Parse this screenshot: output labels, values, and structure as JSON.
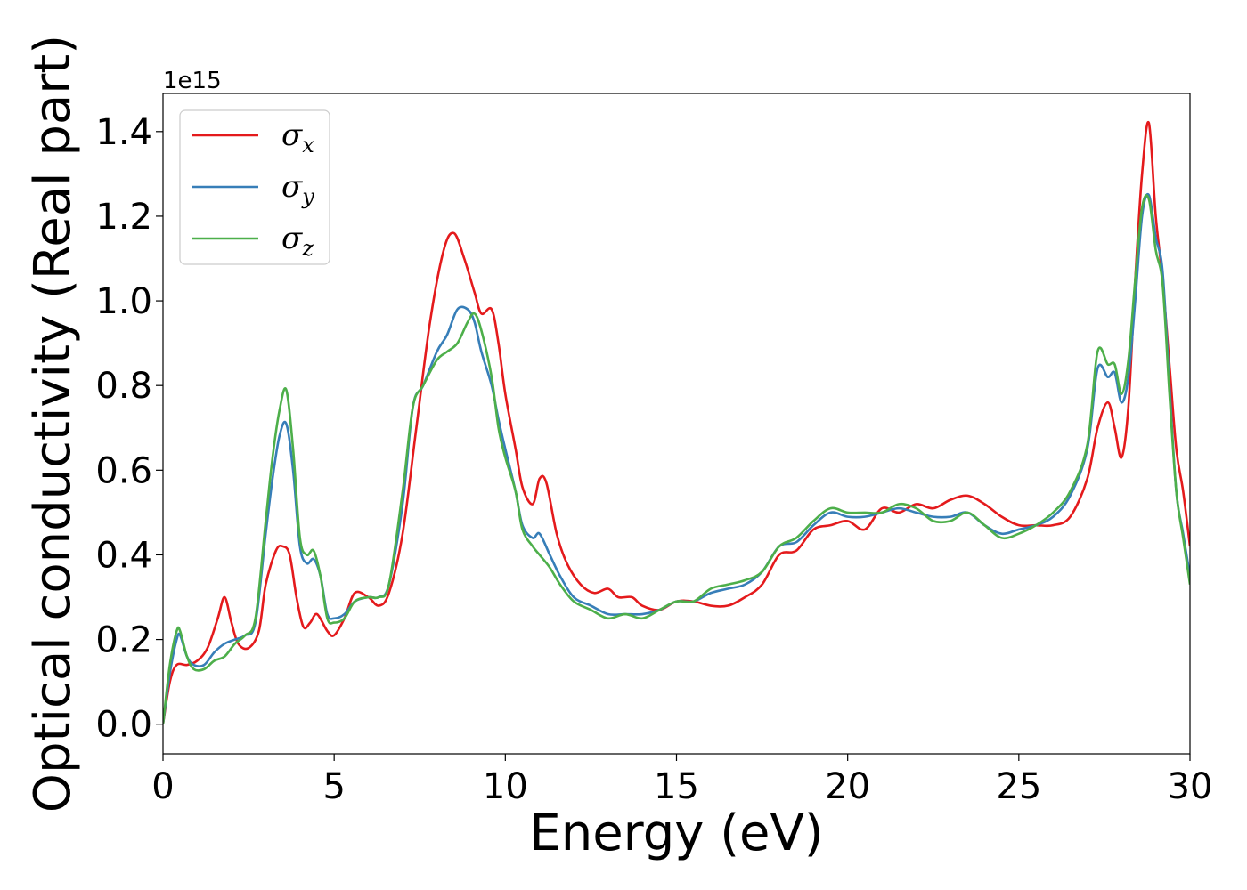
{
  "chart_data": {
    "type": "line",
    "title": "",
    "xlabel": "Energy (eV)",
    "ylabel": "Optical conductivity (Real part)",
    "y_offset_label": "1e15",
    "xlim": [
      0,
      30
    ],
    "ylim": [
      -0.07,
      1.49
    ],
    "xticks": [
      0,
      5,
      10,
      15,
      20,
      25,
      30
    ],
    "xtick_labels": [
      "0",
      "5",
      "10",
      "15",
      "20",
      "25",
      "30"
    ],
    "yticks": [
      0.0,
      0.2,
      0.4,
      0.6,
      0.8,
      1.0,
      1.2,
      1.4
    ],
    "ytick_labels": [
      "0.0",
      "0.2",
      "0.4",
      "0.6",
      "0.8",
      "1.0",
      "1.2",
      "1.4"
    ],
    "grid": false,
    "legend_position": "top-left",
    "series": [
      {
        "name": "σx",
        "symbol": "σ",
        "subscript": "x",
        "color": "#e41a1c",
        "x": [
          0,
          0.2,
          0.4,
          0.7,
          1.0,
          1.3,
          1.6,
          1.8,
          2.0,
          2.2,
          2.5,
          2.8,
          3.0,
          3.3,
          3.5,
          3.7,
          3.9,
          4.1,
          4.3,
          4.5,
          4.8,
          5.0,
          5.3,
          5.6,
          6.0,
          6.3,
          6.6,
          7.0,
          7.4,
          7.8,
          8.2,
          8.5,
          8.8,
          9.1,
          9.3,
          9.6,
          9.8,
          10.0,
          10.3,
          10.5,
          10.8,
          11.0,
          11.2,
          11.5,
          11.8,
          12.2,
          12.6,
          13.0,
          13.3,
          13.7,
          14.0,
          14.5,
          15.0,
          15.5,
          16.0,
          16.5,
          17.0,
          17.5,
          18.0,
          18.5,
          19.0,
          19.5,
          20.0,
          20.5,
          21.0,
          21.5,
          22.0,
          22.5,
          23.0,
          23.5,
          24.0,
          24.5,
          25.0,
          25.5,
          26.0,
          26.5,
          27.0,
          27.3,
          27.6,
          27.8,
          28.0,
          28.2,
          28.4,
          28.6,
          28.8,
          29.0,
          29.2,
          29.4,
          29.6,
          29.8,
          30.0
        ],
        "values": [
          0.0,
          0.1,
          0.14,
          0.14,
          0.15,
          0.18,
          0.25,
          0.3,
          0.24,
          0.19,
          0.18,
          0.22,
          0.33,
          0.41,
          0.42,
          0.4,
          0.3,
          0.23,
          0.24,
          0.26,
          0.22,
          0.21,
          0.25,
          0.31,
          0.3,
          0.28,
          0.31,
          0.45,
          0.7,
          0.95,
          1.12,
          1.16,
          1.1,
          1.02,
          0.97,
          0.98,
          0.9,
          0.78,
          0.65,
          0.56,
          0.52,
          0.58,
          0.57,
          0.45,
          0.38,
          0.33,
          0.31,
          0.32,
          0.3,
          0.3,
          0.28,
          0.27,
          0.29,
          0.29,
          0.28,
          0.28,
          0.3,
          0.33,
          0.4,
          0.41,
          0.46,
          0.47,
          0.48,
          0.46,
          0.51,
          0.5,
          0.52,
          0.51,
          0.53,
          0.54,
          0.52,
          0.49,
          0.47,
          0.47,
          0.47,
          0.49,
          0.58,
          0.7,
          0.76,
          0.7,
          0.63,
          0.75,
          1.05,
          1.3,
          1.42,
          1.2,
          1.05,
          0.85,
          0.65,
          0.55,
          0.42
        ]
      },
      {
        "name": "σy",
        "symbol": "σ",
        "subscript": "y",
        "color": "#377eb8",
        "x": [
          0,
          0.2,
          0.4,
          0.5,
          0.7,
          0.9,
          1.2,
          1.5,
          1.8,
          2.1,
          2.4,
          2.7,
          3.0,
          3.2,
          3.4,
          3.6,
          3.8,
          4.0,
          4.2,
          4.4,
          4.6,
          4.8,
          5.0,
          5.3,
          5.6,
          6.0,
          6.3,
          6.6,
          7.0,
          7.3,
          7.6,
          8.0,
          8.3,
          8.6,
          8.9,
          9.1,
          9.3,
          9.6,
          9.8,
          10.0,
          10.3,
          10.5,
          10.8,
          11.0,
          11.3,
          11.6,
          12.0,
          12.5,
          13.0,
          13.5,
          14.0,
          14.5,
          15.0,
          15.5,
          16.0,
          16.5,
          17.0,
          17.5,
          18.0,
          18.5,
          19.0,
          19.5,
          20.0,
          20.5,
          21.0,
          21.5,
          22.0,
          22.5,
          23.0,
          23.5,
          24.0,
          24.5,
          25.0,
          25.5,
          26.0,
          26.5,
          27.0,
          27.3,
          27.6,
          27.8,
          28.0,
          28.2,
          28.4,
          28.6,
          28.8,
          29.0,
          29.2,
          29.4,
          29.6,
          29.8,
          30.0
        ],
        "values": [
          0.0,
          0.12,
          0.2,
          0.21,
          0.16,
          0.14,
          0.14,
          0.17,
          0.19,
          0.2,
          0.21,
          0.24,
          0.45,
          0.58,
          0.68,
          0.71,
          0.6,
          0.42,
          0.38,
          0.39,
          0.35,
          0.26,
          0.25,
          0.26,
          0.29,
          0.3,
          0.3,
          0.33,
          0.52,
          0.75,
          0.8,
          0.88,
          0.92,
          0.98,
          0.98,
          0.95,
          0.88,
          0.8,
          0.72,
          0.65,
          0.55,
          0.47,
          0.44,
          0.45,
          0.4,
          0.35,
          0.3,
          0.28,
          0.26,
          0.26,
          0.26,
          0.27,
          0.29,
          0.29,
          0.31,
          0.32,
          0.33,
          0.36,
          0.42,
          0.43,
          0.47,
          0.5,
          0.49,
          0.49,
          0.5,
          0.51,
          0.5,
          0.49,
          0.49,
          0.5,
          0.47,
          0.45,
          0.46,
          0.47,
          0.49,
          0.54,
          0.65,
          0.84,
          0.82,
          0.83,
          0.76,
          0.82,
          1.0,
          1.2,
          1.25,
          1.15,
          1.07,
          0.8,
          0.55,
          0.45,
          0.35
        ]
      },
      {
        "name": "σz",
        "symbol": "σ",
        "subscript": "z",
        "color": "#4daf4a",
        "x": [
          0,
          0.2,
          0.4,
          0.5,
          0.7,
          0.9,
          1.2,
          1.5,
          1.8,
          2.1,
          2.4,
          2.7,
          3.0,
          3.2,
          3.4,
          3.6,
          3.8,
          4.0,
          4.2,
          4.4,
          4.6,
          4.8,
          5.0,
          5.3,
          5.6,
          6.0,
          6.3,
          6.6,
          7.0,
          7.3,
          7.6,
          8.0,
          8.3,
          8.6,
          8.9,
          9.1,
          9.3,
          9.6,
          9.8,
          10.0,
          10.3,
          10.5,
          10.8,
          11.0,
          11.3,
          11.6,
          12.0,
          12.5,
          13.0,
          13.5,
          14.0,
          14.5,
          15.0,
          15.5,
          16.0,
          16.5,
          17.0,
          17.5,
          18.0,
          18.5,
          19.0,
          19.5,
          20.0,
          20.5,
          21.0,
          21.5,
          22.0,
          22.5,
          23.0,
          23.5,
          24.0,
          24.5,
          25.0,
          25.5,
          26.0,
          26.5,
          27.0,
          27.3,
          27.6,
          27.8,
          28.0,
          28.2,
          28.4,
          28.6,
          28.8,
          29.0,
          29.2,
          29.4,
          29.6,
          29.8,
          30.0
        ],
        "values": [
          0.0,
          0.14,
          0.22,
          0.22,
          0.16,
          0.13,
          0.13,
          0.15,
          0.16,
          0.19,
          0.21,
          0.25,
          0.48,
          0.63,
          0.74,
          0.79,
          0.65,
          0.44,
          0.4,
          0.41,
          0.35,
          0.25,
          0.24,
          0.25,
          0.29,
          0.3,
          0.3,
          0.33,
          0.55,
          0.75,
          0.8,
          0.86,
          0.88,
          0.9,
          0.95,
          0.97,
          0.93,
          0.82,
          0.7,
          0.63,
          0.55,
          0.46,
          0.42,
          0.4,
          0.37,
          0.33,
          0.29,
          0.27,
          0.25,
          0.26,
          0.25,
          0.27,
          0.29,
          0.29,
          0.32,
          0.33,
          0.34,
          0.36,
          0.42,
          0.44,
          0.48,
          0.51,
          0.5,
          0.5,
          0.5,
          0.52,
          0.51,
          0.48,
          0.48,
          0.5,
          0.47,
          0.44,
          0.45,
          0.47,
          0.5,
          0.55,
          0.66,
          0.88,
          0.85,
          0.85,
          0.78,
          0.86,
          1.05,
          1.22,
          1.24,
          1.12,
          1.04,
          0.78,
          0.55,
          0.44,
          0.33
        ]
      }
    ]
  }
}
